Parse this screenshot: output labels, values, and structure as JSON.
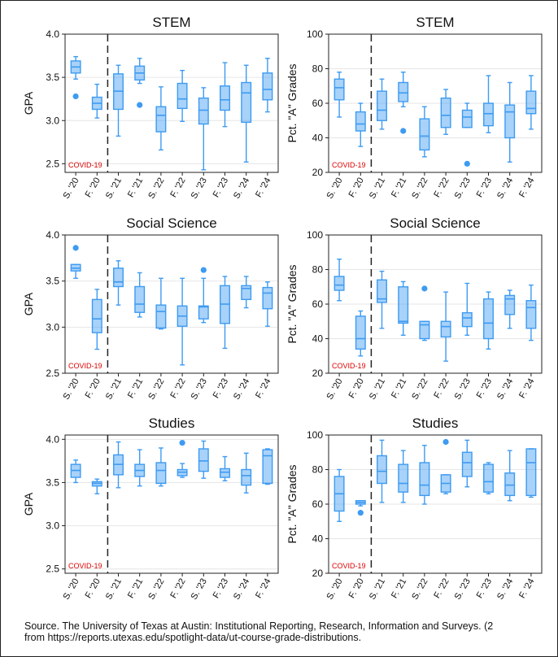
{
  "annotation": "COVID-19",
  "categories": [
    "S. '20",
    "F. '20",
    "S. '21",
    "F. '21",
    "S. '22",
    "F. '22",
    "S. '23",
    "F. '23",
    "S. '24",
    "F. '24"
  ],
  "colors": {
    "box": "#3d9bf2",
    "box_fill": "#3d9bf2",
    "divider": "#222222",
    "annotation": "#dd0000",
    "grid": "#e6e6e6"
  },
  "source_line1": "Source. The University of Texas at Austin: Institutional Reporting, Research, Information and Surveys. (2",
  "source_line2": "from https://reports.utexas.edu/spotlight-data/ut-course-grade-distributions.",
  "chart_data": [
    {
      "type": "box",
      "title": "STEM",
      "ylabel": "GPA",
      "ylim": [
        2.4,
        4.0
      ],
      "yticks": [
        "2.5",
        "3.0",
        "3.5",
        "4.0"
      ],
      "grid": true,
      "boxes": [
        {
          "min": 3.48,
          "q1": 3.55,
          "median": 3.62,
          "q3": 3.69,
          "max": 3.74,
          "outliers": [
            3.28
          ]
        },
        {
          "min": 3.03,
          "q1": 3.13,
          "median": 3.2,
          "q3": 3.27,
          "max": 3.42,
          "outliers": []
        },
        {
          "min": 2.82,
          "q1": 3.13,
          "median": 3.34,
          "q3": 3.54,
          "max": 3.64,
          "outliers": []
        },
        {
          "min": 3.43,
          "q1": 3.47,
          "median": 3.55,
          "q3": 3.63,
          "max": 3.72,
          "outliers": [
            3.18
          ]
        },
        {
          "min": 2.66,
          "q1": 2.87,
          "median": 3.06,
          "q3": 3.16,
          "max": 3.39,
          "outliers": []
        },
        {
          "min": 2.99,
          "q1": 3.14,
          "median": 3.25,
          "q3": 3.43,
          "max": 3.58,
          "outliers": []
        },
        {
          "min": 2.43,
          "q1": 2.96,
          "median": 3.12,
          "q3": 3.26,
          "max": 3.38,
          "outliers": []
        },
        {
          "min": 2.93,
          "q1": 3.12,
          "median": 3.24,
          "q3": 3.4,
          "max": 3.67,
          "outliers": []
        },
        {
          "min": 2.52,
          "q1": 2.98,
          "median": 3.32,
          "q3": 3.44,
          "max": 3.64,
          "outliers": []
        },
        {
          "min": 3.1,
          "q1": 3.24,
          "median": 3.36,
          "q3": 3.55,
          "max": 3.72,
          "outliers": []
        }
      ]
    },
    {
      "type": "box",
      "title": "STEM",
      "ylabel": "Pct. \"A\" Grades",
      "ylim": [
        20,
        100
      ],
      "yticks": [
        "20",
        "40",
        "60",
        "80",
        "100"
      ],
      "grid": true,
      "boxes": [
        {
          "min": 52,
          "q1": 62,
          "median": 69,
          "q3": 74,
          "max": 78,
          "outliers": []
        },
        {
          "min": 35,
          "q1": 44,
          "median": 48,
          "q3": 55,
          "max": 60,
          "outliers": []
        },
        {
          "min": 45,
          "q1": 50,
          "median": 56,
          "q3": 67,
          "max": 74,
          "outliers": []
        },
        {
          "min": 58,
          "q1": 61,
          "median": 66,
          "q3": 72,
          "max": 78,
          "outliers": [
            44
          ]
        },
        {
          "min": 29,
          "q1": 33,
          "median": 41,
          "q3": 51,
          "max": 58,
          "outliers": []
        },
        {
          "min": 42,
          "q1": 46,
          "median": 53,
          "q3": 63,
          "max": 68,
          "outliers": []
        },
        {
          "min": 46,
          "q1": 46,
          "median": 52,
          "q3": 56,
          "max": 60,
          "outliers": [
            25
          ]
        },
        {
          "min": 43,
          "q1": 47,
          "median": 54,
          "q3": 60,
          "max": 76,
          "outliers": []
        },
        {
          "min": 26,
          "q1": 40,
          "median": 55,
          "q3": 59,
          "max": 72,
          "outliers": []
        },
        {
          "min": 45,
          "q1": 54,
          "median": 57,
          "q3": 67,
          "max": 76,
          "outliers": []
        }
      ]
    },
    {
      "type": "box",
      "title": "Social Science",
      "ylabel": "GPA",
      "ylim": [
        2.5,
        4.0
      ],
      "yticks": [
        "2.5",
        "3.0",
        "3.5",
        "4.0"
      ],
      "grid": true,
      "boxes": [
        {
          "min": 3.53,
          "q1": 3.61,
          "median": 3.64,
          "q3": 3.68,
          "max": 3.68,
          "outliers": [
            3.86
          ]
        },
        {
          "min": 2.76,
          "q1": 2.94,
          "median": 3.09,
          "q3": 3.3,
          "max": 3.41,
          "outliers": []
        },
        {
          "min": 3.24,
          "q1": 3.44,
          "median": 3.49,
          "q3": 3.64,
          "max": 3.72,
          "outliers": []
        },
        {
          "min": 3.11,
          "q1": 3.16,
          "median": 3.25,
          "q3": 3.44,
          "max": 3.59,
          "outliers": []
        },
        {
          "min": 2.98,
          "q1": 2.99,
          "median": 3.17,
          "q3": 3.24,
          "max": 3.53,
          "outliers": []
        },
        {
          "min": 2.59,
          "q1": 3.01,
          "median": 3.12,
          "q3": 3.23,
          "max": 3.53,
          "outliers": []
        },
        {
          "min": 3.05,
          "q1": 3.09,
          "median": 3.22,
          "q3": 3.23,
          "max": 3.53,
          "outliers": [
            3.62
          ]
        },
        {
          "min": 2.77,
          "q1": 3.04,
          "median": 3.25,
          "q3": 3.45,
          "max": 3.55,
          "outliers": []
        },
        {
          "min": 3.21,
          "q1": 3.3,
          "median": 3.42,
          "q3": 3.45,
          "max": 3.55,
          "outliers": []
        },
        {
          "min": 3.01,
          "q1": 3.2,
          "median": 3.37,
          "q3": 3.43,
          "max": 3.49,
          "outliers": []
        }
      ]
    },
    {
      "type": "box",
      "title": "Social Science",
      "ylabel": "Pct. \"A\" Grades",
      "ylim": [
        20,
        100
      ],
      "yticks": [
        "20",
        "40",
        "60",
        "80",
        "100"
      ],
      "grid": true,
      "boxes": [
        {
          "min": 62,
          "q1": 68,
          "median": 71,
          "q3": 76,
          "max": 86,
          "outliers": []
        },
        {
          "min": 30,
          "q1": 34,
          "median": 40,
          "q3": 53,
          "max": 56,
          "outliers": []
        },
        {
          "min": 46,
          "q1": 61,
          "median": 63,
          "q3": 74,
          "max": 79,
          "outliers": []
        },
        {
          "min": 42,
          "q1": 49,
          "median": 50,
          "q3": 70,
          "max": 73,
          "outliers": []
        },
        {
          "min": 39,
          "q1": 40,
          "median": 48,
          "q3": 50,
          "max": 50,
          "outliers": [
            69
          ]
        },
        {
          "min": 27,
          "q1": 41,
          "median": 47,
          "q3": 50,
          "max": 67,
          "outliers": []
        },
        {
          "min": 42,
          "q1": 47,
          "median": 52,
          "q3": 55,
          "max": 72,
          "outliers": []
        },
        {
          "min": 34,
          "q1": 40,
          "median": 49,
          "q3": 63,
          "max": 67,
          "outliers": []
        },
        {
          "min": 46,
          "q1": 54,
          "median": 63,
          "q3": 65,
          "max": 68,
          "outliers": []
        },
        {
          "min": 39,
          "q1": 46,
          "median": 58,
          "q3": 62,
          "max": 71,
          "outliers": []
        }
      ]
    },
    {
      "type": "box",
      "title": "Studies",
      "ylabel": "GPA",
      "ylim": [
        2.45,
        4.05
      ],
      "yticks": [
        "2.5",
        "3.0",
        "3.5",
        "4.0"
      ],
      "grid": true,
      "boxes": [
        {
          "min": 3.5,
          "q1": 3.56,
          "median": 3.64,
          "q3": 3.71,
          "max": 3.76,
          "outliers": []
        },
        {
          "min": 3.37,
          "q1": 3.46,
          "median": 3.49,
          "q3": 3.51,
          "max": 3.54,
          "outliers": []
        },
        {
          "min": 3.44,
          "q1": 3.59,
          "median": 3.71,
          "q3": 3.82,
          "max": 3.97,
          "outliers": []
        },
        {
          "min": 3.46,
          "q1": 3.57,
          "median": 3.64,
          "q3": 3.71,
          "max": 3.88,
          "outliers": []
        },
        {
          "min": 3.46,
          "q1": 3.49,
          "median": 3.64,
          "q3": 3.73,
          "max": 3.9,
          "outliers": []
        },
        {
          "min": 3.56,
          "q1": 3.58,
          "median": 3.62,
          "q3": 3.65,
          "max": 3.72,
          "outliers": [
            3.96
          ]
        },
        {
          "min": 3.55,
          "q1": 3.63,
          "median": 3.75,
          "q3": 3.89,
          "max": 3.98,
          "outliers": []
        },
        {
          "min": 3.52,
          "q1": 3.56,
          "median": 3.62,
          "q3": 3.66,
          "max": 3.8,
          "outliers": []
        },
        {
          "min": 3.38,
          "q1": 3.47,
          "median": 3.58,
          "q3": 3.65,
          "max": 3.84,
          "outliers": []
        },
        {
          "min": 3.48,
          "q1": 3.49,
          "median": 3.81,
          "q3": 3.88,
          "max": 3.89,
          "outliers": []
        }
      ]
    },
    {
      "type": "box",
      "title": "Studies",
      "ylabel": "Pct. \"A\" Grades",
      "ylim": [
        20,
        100
      ],
      "yticks": [
        "20",
        "40",
        "60",
        "80",
        "100"
      ],
      "grid": true,
      "boxes": [
        {
          "min": 50,
          "q1": 56,
          "median": 66,
          "q3": 76,
          "max": 80,
          "outliers": []
        },
        {
          "min": 59,
          "q1": 60,
          "median": 61,
          "q3": 62,
          "max": 62,
          "outliers": [
            55
          ]
        },
        {
          "min": 61,
          "q1": 72,
          "median": 79,
          "q3": 88,
          "max": 97,
          "outliers": []
        },
        {
          "min": 61,
          "q1": 67,
          "median": 72,
          "q3": 83,
          "max": 91,
          "outliers": []
        },
        {
          "min": 60,
          "q1": 65,
          "median": 71,
          "q3": 84,
          "max": 94,
          "outliers": []
        },
        {
          "min": 66,
          "q1": 67,
          "median": 72,
          "q3": 77,
          "max": 77,
          "outliers": [
            96
          ]
        },
        {
          "min": 70,
          "q1": 76,
          "median": 84,
          "q3": 90,
          "max": 97,
          "outliers": []
        },
        {
          "min": 66,
          "q1": 67,
          "median": 73,
          "q3": 83,
          "max": 84,
          "outliers": []
        },
        {
          "min": 62,
          "q1": 65,
          "median": 71,
          "q3": 78,
          "max": 91,
          "outliers": []
        },
        {
          "min": 64,
          "q1": 65,
          "median": 84,
          "q3": 92,
          "max": 92,
          "outliers": []
        }
      ]
    }
  ]
}
